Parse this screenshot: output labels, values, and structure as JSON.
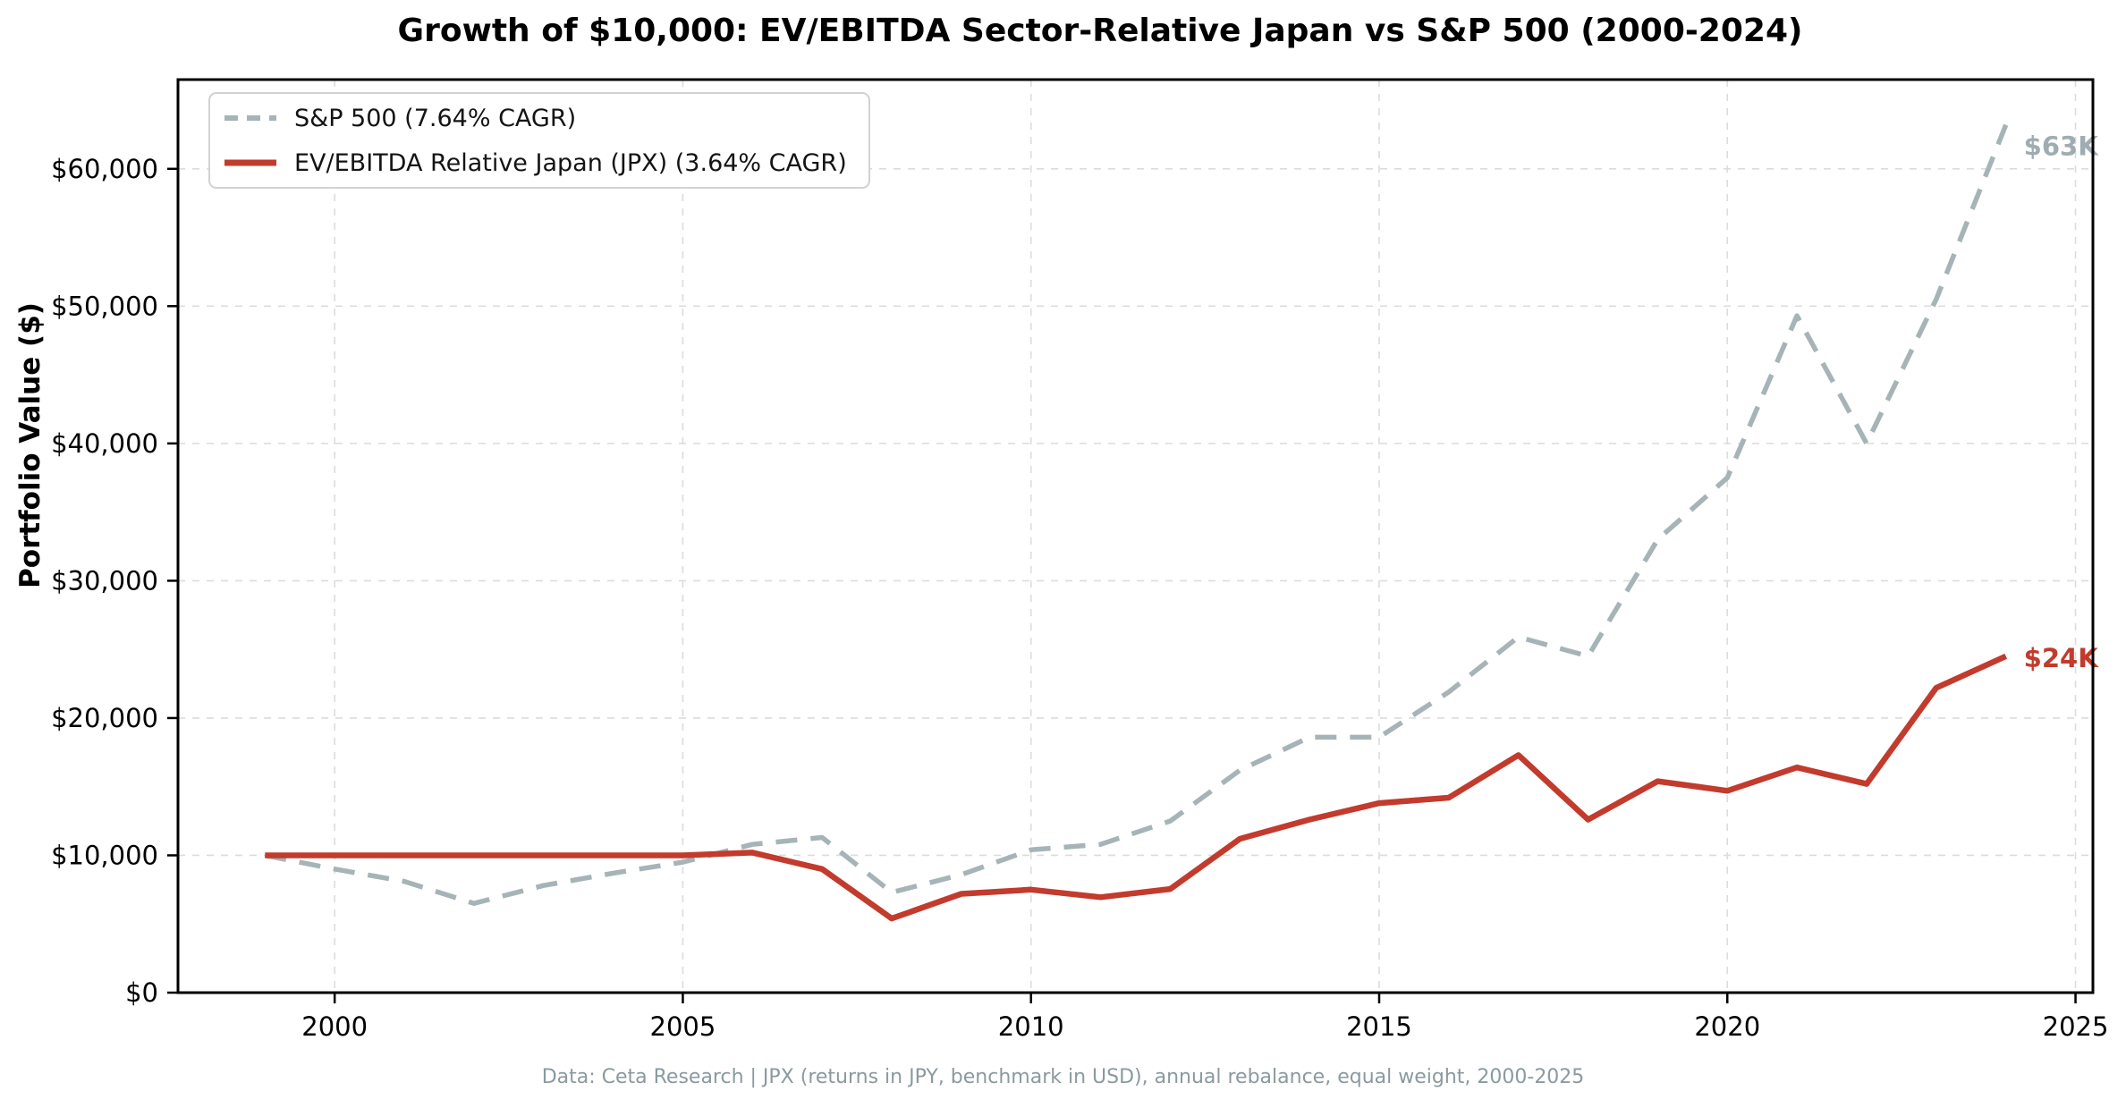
{
  "title": "Growth of $10,000: EV/EBITDA Sector-Relative Japan vs S&P 500 (2000-2024)",
  "footnote": "Data: Ceta Research | JPX (returns in JPY, benchmark in USD), annual rebalance, equal weight, 2000-2025",
  "y_axis_title": "Portfolio Value ($)",
  "colors": {
    "sp500_line": "#a6b4b8",
    "sp500_label": "#9fadb2",
    "japan_line": "#c23b2d",
    "japan_label": "#c23b2d",
    "grid": "#dcdcdc",
    "spine": "#000000",
    "tick_label": "#000000",
    "footnote_text": "#8a9aa0"
  },
  "legend": {
    "items": [
      {
        "label": "S&P 500 (7.64% CAGR)",
        "style": "dashed",
        "color": "#a6b4b8"
      },
      {
        "label": "EV/EBITDA Relative Japan (JPX) (3.64% CAGR)",
        "style": "solid",
        "color": "#c23b2d"
      }
    ]
  },
  "end_labels": [
    {
      "text": "$63K",
      "series": 0
    },
    {
      "text": "$24K",
      "series": 1
    }
  ],
  "chart_data": {
    "type": "line",
    "title": "Growth of $10,000: EV/EBITDA Sector-Relative Japan vs S&P 500 (2000-2024)",
    "xlabel": "",
    "ylabel": "Portfolio Value ($)",
    "x": [
      1999,
      2000,
      2001,
      2002,
      2003,
      2004,
      2005,
      2006,
      2007,
      2008,
      2009,
      2010,
      2011,
      2012,
      2013,
      2014,
      2015,
      2016,
      2017,
      2018,
      2019,
      2020,
      2021,
      2022,
      2023,
      2024
    ],
    "series": [
      {
        "name": "S&P 500 (7.64% CAGR)",
        "style": "dashed",
        "color": "#a6b4b8",
        "values": [
          10000,
          9000,
          8100,
          6500,
          7800,
          8700,
          9500,
          10800,
          11300,
          7300,
          8600,
          10400,
          10800,
          12500,
          16200,
          18600,
          18600,
          21900,
          25900,
          24500,
          33000,
          37500,
          49300,
          40000,
          50500,
          63200
        ]
      },
      {
        "name": "EV/EBITDA Relative Japan (JPX) (3.64% CAGR)",
        "style": "solid",
        "color": "#c23b2d",
        "values": [
          10000,
          10000,
          10000,
          10000,
          10000,
          10000,
          10000,
          10200,
          9000,
          5400,
          7200,
          7500,
          6950,
          7550,
          11200,
          12600,
          13800,
          14200,
          17300,
          12600,
          15400,
          14700,
          16400,
          15200,
          22200,
          24500
        ]
      }
    ],
    "xlim": [
      1997.75,
      2025.25
    ],
    "ylim": [
      0,
      66500
    ],
    "x_ticks": [
      2000,
      2005,
      2010,
      2015,
      2020,
      2025
    ],
    "x_tick_labels": [
      "2000",
      "2005",
      "2010",
      "2015",
      "2020",
      "2025"
    ],
    "y_ticks": [
      0,
      10000,
      20000,
      30000,
      40000,
      50000,
      60000
    ],
    "y_tick_labels": [
      "$0",
      "$10,000",
      "$20,000",
      "$30,000",
      "$40,000",
      "$50,000",
      "$60,000"
    ],
    "grid": true,
    "legend_position": "upper left"
  }
}
